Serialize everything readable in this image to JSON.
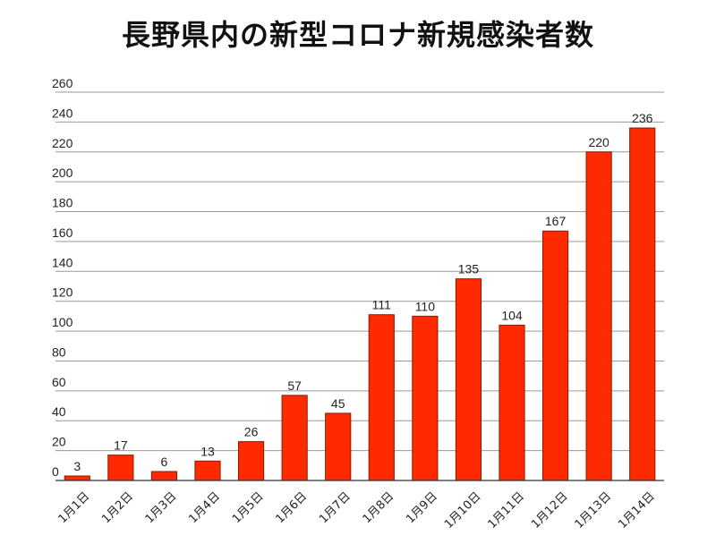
{
  "chart_data": {
    "type": "bar",
    "title": "長野県内の新型コロナ新規感染者数",
    "categories": [
      "1月1日",
      "1月2日",
      "1月3日",
      "1月4日",
      "1月5日",
      "1月6日",
      "1月7日",
      "1月8日",
      "1月9日",
      "1月10日",
      "1月11日",
      "1月12日",
      "1月13日",
      "1月14日"
    ],
    "values": [
      3,
      17,
      6,
      13,
      26,
      57,
      45,
      111,
      110,
      135,
      104,
      167,
      220,
      236
    ],
    "ylim": [
      0,
      260
    ],
    "yticks": [
      0,
      20,
      40,
      60,
      80,
      100,
      120,
      140,
      160,
      180,
      200,
      220,
      240,
      260
    ],
    "xlabel": "",
    "ylabel": "",
    "grid": true,
    "bar_color": "#ff2a00",
    "show_data_labels": true
  }
}
